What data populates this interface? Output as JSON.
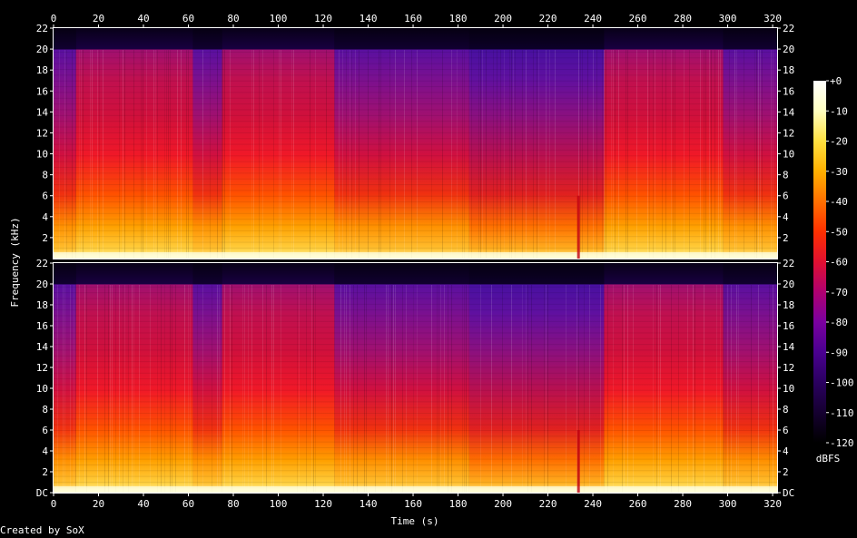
{
  "chart_data": {
    "type": "heatmap",
    "title": "",
    "xlabel": "Time (s)",
    "ylabel": "Frequency (kHz)",
    "xlim": [
      0,
      322
    ],
    "ylim": [
      0,
      22
    ],
    "x_ticks": [
      0,
      20,
      40,
      60,
      80,
      100,
      120,
      140,
      160,
      180,
      200,
      220,
      240,
      260,
      280,
      300,
      320
    ],
    "y_ticks_top": [
      "22",
      "20",
      "18",
      "16",
      "14",
      "12",
      "10",
      "8",
      "6",
      "4",
      "2"
    ],
    "y_ticks_bottom": [
      "22",
      "20",
      "18",
      "16",
      "14",
      "12",
      "10",
      "8",
      "6",
      "4",
      "2",
      "DC"
    ],
    "y_tick_values": [
      22,
      20,
      18,
      16,
      14,
      12,
      10,
      8,
      6,
      4,
      2,
      0
    ],
    "channels": 2,
    "colorbar": {
      "label": "dBFS",
      "ticks": [
        "+0",
        "-10",
        "-20",
        "-30",
        "-40",
        "-50",
        "-60",
        "-70",
        "-80",
        "-90",
        "-100",
        "-110",
        "-120"
      ],
      "range": [
        -120,
        0
      ],
      "colors": [
        "#000000",
        "#150030",
        "#2a0060",
        "#4a0090",
        "#7a00a0",
        "#b00070",
        "#e01030",
        "#ff3000",
        "#ff7000",
        "#ffb000",
        "#ffe040",
        "#ffffc0",
        "#ffffff"
      ]
    },
    "segments": [
      {
        "start": 0,
        "end": 10,
        "level": "mid"
      },
      {
        "start": 10,
        "end": 62,
        "level": "high"
      },
      {
        "start": 62,
        "end": 75,
        "level": "mid"
      },
      {
        "start": 75,
        "end": 125,
        "level": "high"
      },
      {
        "start": 125,
        "end": 185,
        "level": "mid"
      },
      {
        "start": 185,
        "end": 245,
        "level": "low"
      },
      {
        "start": 245,
        "end": 298,
        "level": "high"
      },
      {
        "start": 298,
        "end": 322,
        "level": "mid"
      }
    ],
    "cutoff_khz": 20
  },
  "credit": "Created by SoX"
}
